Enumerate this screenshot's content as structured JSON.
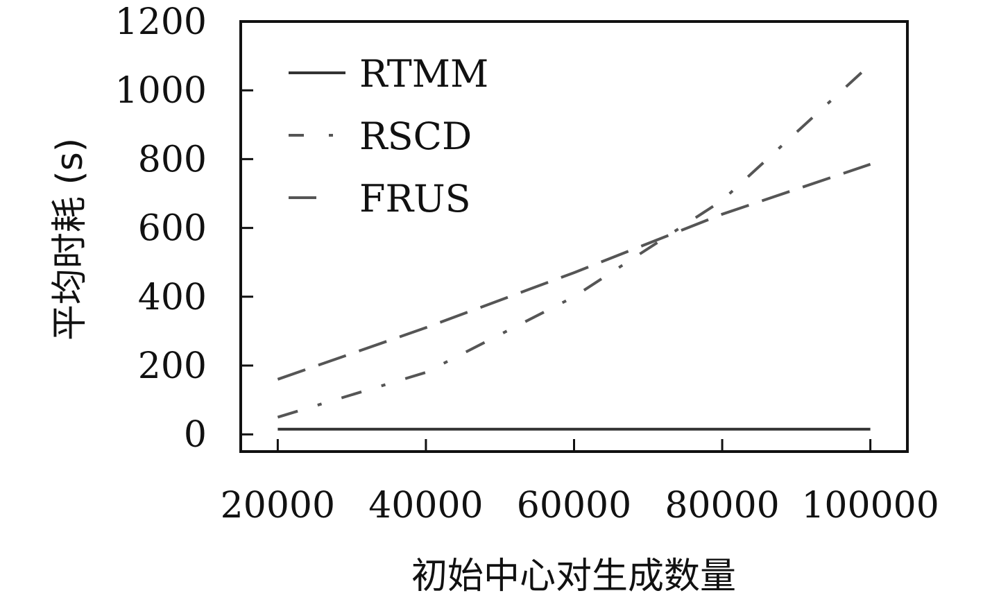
{
  "chart_data": {
    "type": "line",
    "title": "",
    "xlabel": "初始中心对生成数量",
    "ylabel": "平均时耗 (s)",
    "x": [
      20000,
      40000,
      60000,
      80000,
      100000
    ],
    "xticks": [
      "20000",
      "40000",
      "60000",
      "80000",
      "100000"
    ],
    "yticks": [
      "0",
      "200",
      "400",
      "600",
      "800",
      "1000",
      "1200"
    ],
    "xlim": [
      15000,
      105000
    ],
    "ylim": [
      -50,
      1200
    ],
    "grid": false,
    "legend_position": "top-left",
    "series": [
      {
        "name": "RTMM",
        "style": "solid",
        "color": "#333333",
        "values": [
          15,
          15,
          15,
          15,
          15
        ]
      },
      {
        "name": "RSCD",
        "style": "dashdot",
        "color": "#555555",
        "values": [
          50,
          180,
          400,
          680,
          1075
        ]
      },
      {
        "name": "FRUS",
        "style": "dashed",
        "color": "#555555",
        "values": [
          160,
          310,
          470,
          640,
          785
        ]
      }
    ]
  }
}
